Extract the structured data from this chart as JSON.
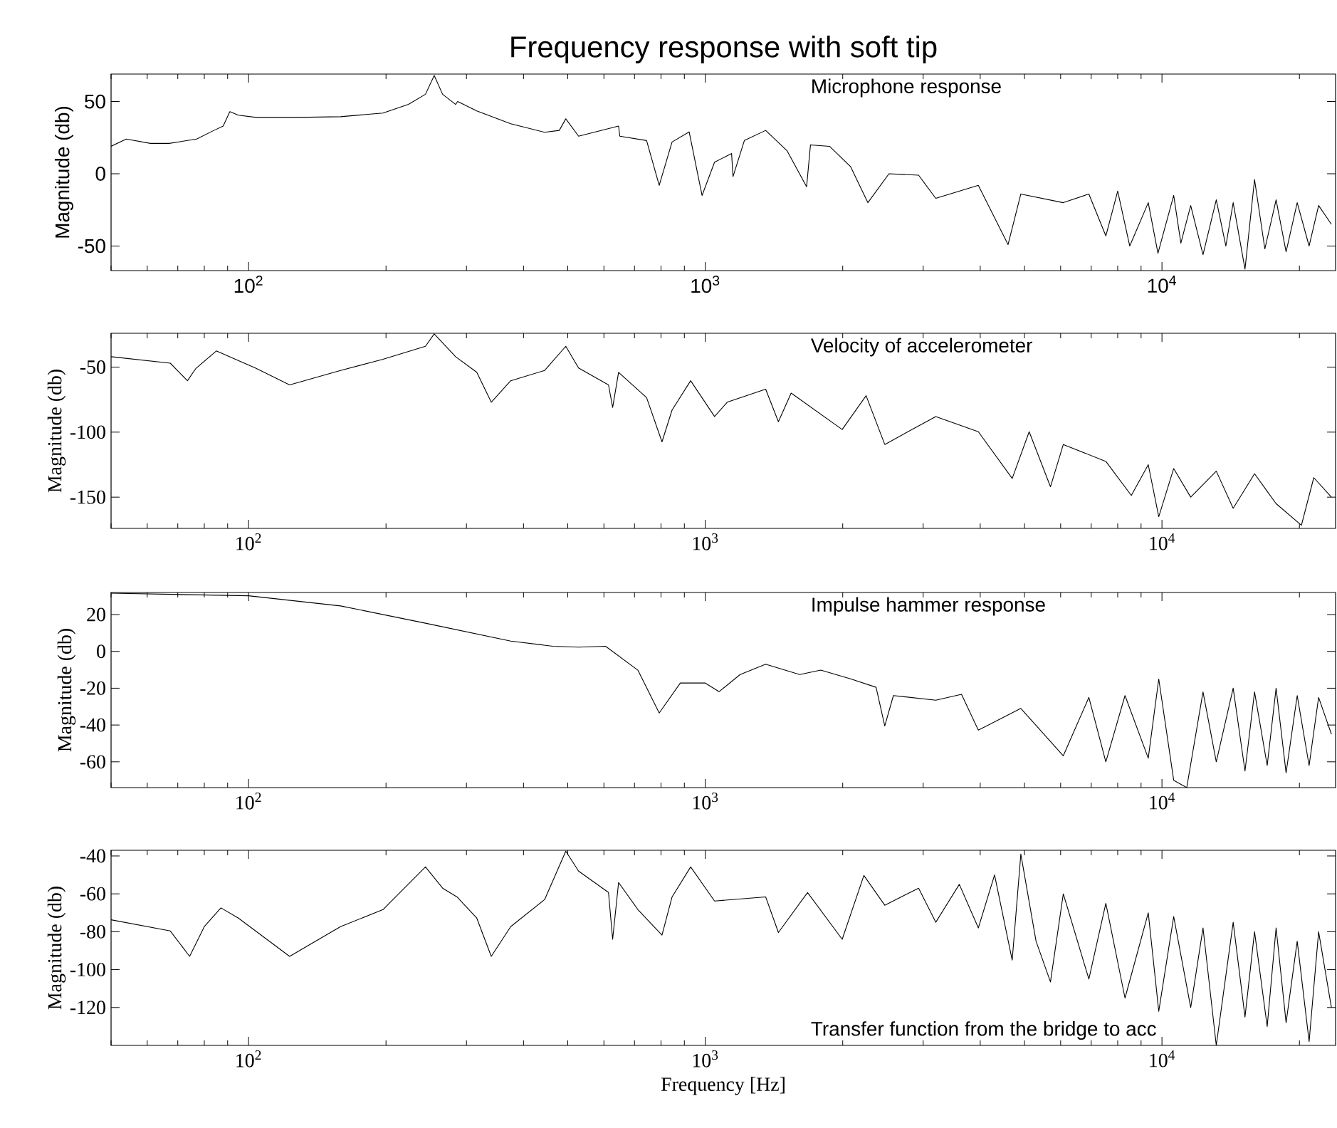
{
  "chart_data": [
    {
      "type": "line",
      "title": "Frequency response with soft tip",
      "ylabel": "Magnitude (db)",
      "annotations": [
        "Microphone response"
      ],
      "log": "x",
      "xlim": [
        50,
        24000
      ],
      "ylim": [
        -67,
        69
      ],
      "xticks": [
        {
          "value": 100,
          "label": "10$^{2}$"
        },
        {
          "value": 1000,
          "label": "10$^{3}$"
        },
        {
          "value": 10000,
          "label": "10$^{4}$"
        }
      ],
      "yticks": [
        -50,
        0,
        50
      ],
      "series": [
        {
          "color": "#000000",
          "x": [
            50,
            54,
            61,
            67,
            77,
            84,
            88,
            91,
            95,
            104,
            128,
            159,
            197,
            224,
            244,
            255,
            266,
            284,
            287,
            316,
            375,
            445,
            479,
            495,
            528,
            646,
            650,
            744,
            793,
            846,
            922,
            984,
            1048,
            1142,
            1150,
            1218,
            1356,
            1510,
            1667,
            1700,
            1871,
            2080,
            2270,
            2525,
            2932,
            3197,
            3963,
            4603,
            4909,
            6081,
            6918,
            7537,
            8000,
            8500,
            9333,
            9800,
            10610,
            11000,
            11560,
            12300,
            13150,
            13800,
            14320,
            15200,
            15950,
            16800,
            17780,
            18700,
            19780,
            21000,
            22030,
            23500
          ],
          "values": [
            19,
            24,
            21,
            21,
            24,
            30,
            33,
            43,
            40.5,
            39,
            39,
            39.5,
            42,
            48,
            55,
            68,
            55,
            48,
            50,
            43.5,
            34.6,
            28.7,
            30,
            38,
            26,
            33,
            26,
            23,
            -8,
            22,
            29,
            -15,
            8,
            14,
            -2,
            23,
            30,
            16,
            -9,
            20,
            19,
            5,
            -20,
            0,
            -1,
            -17,
            -8,
            -49,
            -14,
            -20,
            -14,
            -43,
            -12,
            -50,
            -20,
            -55,
            -15,
            -48,
            -22,
            -56,
            -18,
            -50,
            -20,
            -66,
            -4,
            -52,
            -18,
            -54,
            -20,
            -50,
            -22,
            -35
          ]
        }
      ]
    },
    {
      "type": "line",
      "ylabel": "Magnitude (db)",
      "annotations": [
        "Velocity of accelerometer"
      ],
      "log": "x",
      "xlim": [
        50,
        24000
      ],
      "ylim": [
        -174,
        -24
      ],
      "xticks": [
        {
          "value": 100,
          "label": "10$^{2}$"
        },
        {
          "value": 1000,
          "label": "10$^{3}$"
        },
        {
          "value": 10000,
          "label": "10$^{4}$"
        }
      ],
      "yticks": [
        -150,
        -100,
        -50
      ],
      "series": [
        {
          "color": "#000000",
          "x": [
            50,
            67.4,
            73.5,
            76.7,
            85,
            103.5,
            123,
            159,
            197,
            244,
            255,
            284,
            316,
            340,
            375,
            445,
            495,
            528,
            614,
            627,
            646,
            744,
            804,
            846,
            929,
            1048,
            1117,
            1356,
            1446,
            1542,
            1995,
            2250,
            2472,
            3197,
            3963,
            4700,
            5120,
            5700,
            6081,
            7537,
            8570,
            9333,
            9840,
            10610,
            11560,
            13150,
            14320,
            15950,
            17780,
            20200,
            21500,
            23500
          ],
          "values": [
            -42,
            -47,
            -60.5,
            -51,
            -37.6,
            -50.7,
            -63.7,
            -52.6,
            -44,
            -34,
            -24.5,
            -42,
            -54,
            -77,
            -60.5,
            -52.6,
            -34,
            -50.7,
            -63.7,
            -81,
            -54,
            -73.5,
            -107.5,
            -83,
            -60.5,
            -88,
            -77,
            -67,
            -92,
            -70,
            -98,
            -72,
            -109.5,
            -88,
            -99.7,
            -135.6,
            -99.7,
            -142,
            -109.5,
            -122.5,
            -148.7,
            -125,
            -165,
            -128,
            -150,
            -130,
            -158.5,
            -132,
            -155,
            -171.6,
            -135,
            -150
          ]
        }
      ]
    },
    {
      "type": "line",
      "ylabel": "Magnitude (db)",
      "annotations": [
        "Impulse hammer response"
      ],
      "log": "x",
      "xlim": [
        50,
        24000
      ],
      "ylim": [
        -74,
        32
      ],
      "xticks": [
        {
          "value": 100,
          "label": "10$^{2}$"
        },
        {
          "value": 1000,
          "label": "10$^{3}$"
        },
        {
          "value": 10000,
          "label": "10$^{4}$"
        }
      ],
      "yticks": [
        -60,
        -40,
        -20,
        0,
        20
      ],
      "series": [
        {
          "color": "#000000",
          "x": [
            50,
            100,
            159,
            244,
            375,
            464,
            528,
            605,
            712,
            793,
            882,
            1000,
            1072,
            1192,
            1356,
            1610,
            1790,
            2080,
            2366,
            2472,
            2582,
            3197,
            3640,
            3963,
            4909,
            6081,
            6918,
            7537,
            8300,
            9333,
            9840,
            10610,
            11330,
            12300,
            13150,
            14320,
            15200,
            15950,
            17000,
            17780,
            18700,
            19780,
            21000,
            22030,
            23500
          ],
          "values": [
            31.6,
            30.2,
            24.7,
            15.3,
            5.6,
            2.8,
            2.3,
            2.8,
            -10.2,
            -33.5,
            -17.2,
            -17.2,
            -21.9,
            -12.6,
            -7,
            -12.6,
            -10.2,
            -14.9,
            -19.5,
            -40.5,
            -24,
            -26.5,
            -23.3,
            -42.8,
            -31,
            -56.7,
            -25,
            -60,
            -24,
            -58,
            -15,
            -70,
            -74,
            -22,
            -60,
            -20,
            -65,
            -22,
            -62,
            -20,
            -66,
            -24,
            -62,
            -25,
            -45
          ]
        }
      ]
    },
    {
      "type": "line",
      "ylabel": "Magnitude (db)",
      "xlabel": "Frequency [Hz]",
      "annotations": [
        "Transfer function from the bridge to acc"
      ],
      "log": "x",
      "xlim": [
        50,
        24000
      ],
      "ylim": [
        -140,
        -37
      ],
      "xticks": [
        {
          "value": 100,
          "label": "10$^{2}$"
        },
        {
          "value": 1000,
          "label": "10$^{3}$"
        },
        {
          "value": 10000,
          "label": "10$^{4}$"
        }
      ],
      "yticks": [
        -120,
        -100,
        -80,
        -60,
        -40
      ],
      "series": [
        {
          "color": "#000000",
          "x": [
            50,
            67.4,
            74.3,
            80,
            87,
            95,
            123,
            159,
            197,
            244,
            266,
            286,
            316,
            340,
            375,
            445,
            495,
            528,
            614,
            627,
            646,
            712,
            804,
            846,
            929,
            1048,
            1356,
            1446,
            1675,
            1995,
            2225,
            2472,
            2932,
            3197,
            3600,
            3963,
            4300,
            4700,
            4909,
            5300,
            5700,
            6081,
            6918,
            7537,
            8300,
            9333,
            9840,
            10610,
            11560,
            12300,
            13150,
            14320,
            15200,
            15950,
            17000,
            17780,
            18700,
            19780,
            21000,
            22030,
            23500
          ],
          "values": [
            -73.7,
            -79.6,
            -93,
            -77.3,
            -67.4,
            -72.8,
            -93,
            -77.3,
            -68.3,
            -45.8,
            -57,
            -61.6,
            -72.8,
            -93,
            -77.3,
            -63,
            -37.5,
            -48,
            -59.3,
            -84,
            -54,
            -68.3,
            -81.8,
            -61.6,
            -45.8,
            -63.8,
            -61.6,
            -80.4,
            -59.3,
            -84,
            -50.3,
            -66,
            -57,
            -75,
            -55,
            -78,
            -50,
            -95,
            -39,
            -85,
            -106.5,
            -60,
            -105,
            -65,
            -115,
            -70,
            -122,
            -72,
            -120,
            -78,
            -140,
            -75,
            -125,
            -80,
            -130,
            -78,
            -128,
            -85,
            -138,
            -80,
            -120
          ]
        }
      ]
    }
  ]
}
